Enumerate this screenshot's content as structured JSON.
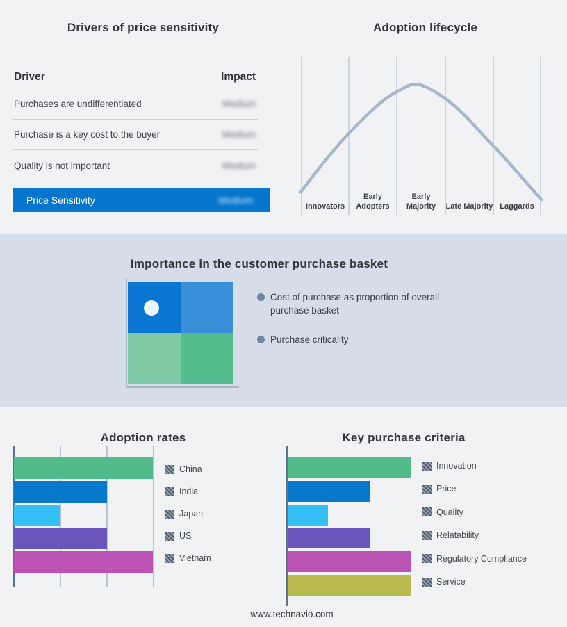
{
  "footer_text": "www.technavio.com",
  "colors": {
    "background": "#F1F2F4",
    "band_background": "#D4DDE8",
    "accent_blue": "#0575CE",
    "curve": "#A9B7CB",
    "axis_dark": "#5B7186",
    "gridline": "#B9C3D2",
    "bullet_marker": "#72849E"
  },
  "drivers_panel": {
    "title": "Drivers of price sensitivity",
    "columns": [
      "Driver",
      "Impact"
    ],
    "rows": [
      {
        "driver": "Purchases are undifferentiated",
        "impact": "Medium",
        "impact_redacted": true
      },
      {
        "driver": "Purchase is a key cost to the buyer",
        "impact": "Medium",
        "impact_redacted": true
      },
      {
        "driver": "Quality is not important",
        "impact": "Medium",
        "impact_redacted": true
      }
    ],
    "summary_row": {
      "driver": "Price Sensitivity",
      "impact": "Medium",
      "impact_redacted": true
    }
  },
  "importance_panel": {
    "title": "Importance in the customer purchase basket",
    "bullets": [
      "Cost of purchase as proportion of overall purchase basket",
      "Purchase criticality"
    ],
    "quadrant_colors": [
      "#0B76D1",
      "#3990D9",
      "#7EC8A4",
      "#53BD8D"
    ]
  },
  "chart_data": [
    {
      "type": "line",
      "title": "Adoption lifecycle",
      "x_categories": [
        "Innovators",
        "Early Adopters",
        "Early Majority",
        "Late Majority",
        "Laggards"
      ],
      "shape": "bell curve peaking near start of Early Majority segment",
      "curve_profile_relative_height": {
        "start": 0.08,
        "at_innovators_end": 0.55,
        "at_early_adopters_end": 0.9,
        "peak": 1.0,
        "at_late_majority_start": 0.88,
        "at_late_majority_end": 0.48,
        "end": 0.05
      },
      "grid": "vertical segment boundaries only",
      "line_color": "#A9B7CB",
      "legend_position": "none"
    },
    {
      "type": "bar",
      "title": "Adoption rates",
      "orientation": "horizontal",
      "categories": [
        "China",
        "India",
        "Japan",
        "US",
        "Vietnam"
      ],
      "values": [
        100,
        67,
        33,
        67,
        100
      ],
      "xlim": [
        0,
        100
      ],
      "values_note": "estimated from gridlines at thirds; no numeric axis labels shown",
      "bar_colors": [
        "#52BB8B",
        "#0878CB",
        "#35C0F5",
        "#6A55BD",
        "#BB53B4"
      ],
      "grid": "3 vertical gridlines",
      "legend_position": "right",
      "legend_swatch": "diagonal-hatch"
    },
    {
      "type": "bar",
      "title": "Key purchase criteria",
      "orientation": "horizontal",
      "categories": [
        "Innovation",
        "Price",
        "Quality",
        "Relatability",
        "Regulatory Compliance",
        "Service"
      ],
      "values": [
        100,
        67,
        33,
        67,
        100,
        100
      ],
      "xlim": [
        0,
        100
      ],
      "values_note": "estimated from gridlines at thirds; no numeric axis labels shown",
      "bar_colors": [
        "#52BB8B",
        "#0878CB",
        "#35C0F5",
        "#6A55BD",
        "#BB53B4",
        "#B9BA4D"
      ],
      "grid": "3 vertical gridlines",
      "legend_position": "right",
      "legend_swatch": "diagonal-hatch"
    }
  ]
}
